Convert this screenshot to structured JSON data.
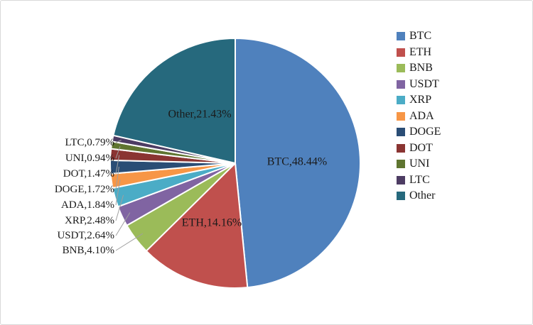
{
  "chart_data": {
    "type": "pie",
    "title": "",
    "legend_position": "right",
    "label_format": "name,percent",
    "leader_line_color": "#a0a0a0",
    "label_text_color": "#1a1a1a",
    "slices": [
      {
        "label": "BTC",
        "value": 48.44,
        "display": "BTC,48.44%",
        "color": "#4F81BD",
        "label_placement": "inside"
      },
      {
        "label": "ETH",
        "value": 14.16,
        "display": "ETH,14.16%",
        "color": "#C0504D",
        "label_placement": "inside"
      },
      {
        "label": "BNB",
        "value": 4.1,
        "display": "BNB,4.10%",
        "color": "#9BBB59",
        "label_placement": "outside"
      },
      {
        "label": "USDT",
        "value": 2.64,
        "display": "USDT,2.64%",
        "color": "#8064A2",
        "label_placement": "outside"
      },
      {
        "label": "XRP",
        "value": 2.48,
        "display": "XRP,2.48%",
        "color": "#4BACC6",
        "label_placement": "outside"
      },
      {
        "label": "ADA",
        "value": 1.84,
        "display": "ADA,1.84%",
        "color": "#F79646",
        "label_placement": "outside"
      },
      {
        "label": "DOGE",
        "value": 1.72,
        "display": "DOGE,1.72%",
        "color": "#2A4D75",
        "label_placement": "outside"
      },
      {
        "label": "DOT",
        "value": 1.47,
        "display": "DOT,1.47%",
        "color": "#8A3432",
        "label_placement": "outside"
      },
      {
        "label": "UNI",
        "value": 0.94,
        "display": "UNI,0.94%",
        "color": "#5F7530",
        "label_placement": "outside"
      },
      {
        "label": "LTC",
        "value": 0.79,
        "display": "LTC,0.79%",
        "color": "#4D3C63",
        "label_placement": "outside"
      },
      {
        "label": "Other",
        "value": 21.43,
        "display": "Other,21.43%",
        "color": "#26697D",
        "label_placement": "inside"
      }
    ],
    "legend_items": [
      "BTC",
      "ETH",
      "BNB",
      "USDT",
      "XRP",
      "ADA",
      "DOGE",
      "DOT",
      "UNI",
      "LTC",
      "Other"
    ]
  }
}
